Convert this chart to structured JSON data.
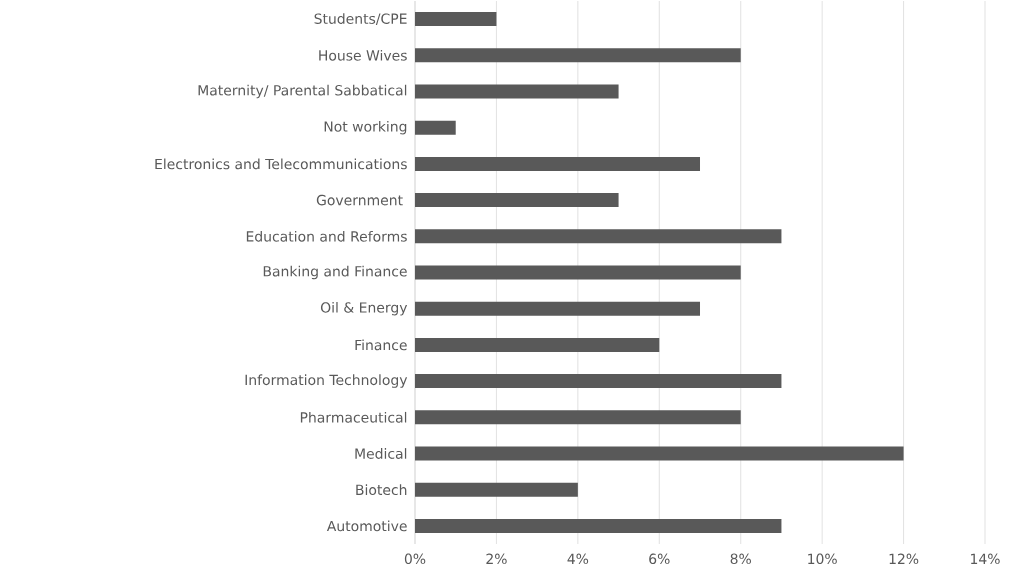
{
  "chart_data": {
    "type": "bar",
    "orientation": "horizontal",
    "color": "#595959",
    "categories": [
      "Students/CPE",
      "House Wives",
      "Maternity/ Parental Sabbatical",
      "Not working",
      "Electronics and Telecommunications",
      "Government ",
      "Education and Reforms",
      "Banking and Finance",
      "Oil & Energy",
      "Finance",
      "Information Technology",
      "Pharmaceutical",
      "Medical",
      "Biotech",
      "Automotive"
    ],
    "values": [
      2,
      8,
      5,
      1,
      7,
      5,
      9,
      8,
      7,
      6,
      9,
      8,
      12,
      4,
      9
    ],
    "xlim": [
      0,
      14
    ],
    "xticks": [
      {
        "value": 0,
        "label": "0%"
      },
      {
        "value": 2,
        "label": "2%"
      },
      {
        "value": 4,
        "label": "4%"
      },
      {
        "value": 6,
        "label": "6%"
      },
      {
        "value": 8,
        "label": "8%"
      },
      {
        "value": 10,
        "label": "10%"
      },
      {
        "value": 12,
        "label": "12%"
      },
      {
        "value": 14,
        "label": "14%"
      }
    ],
    "grid": "x"
  }
}
